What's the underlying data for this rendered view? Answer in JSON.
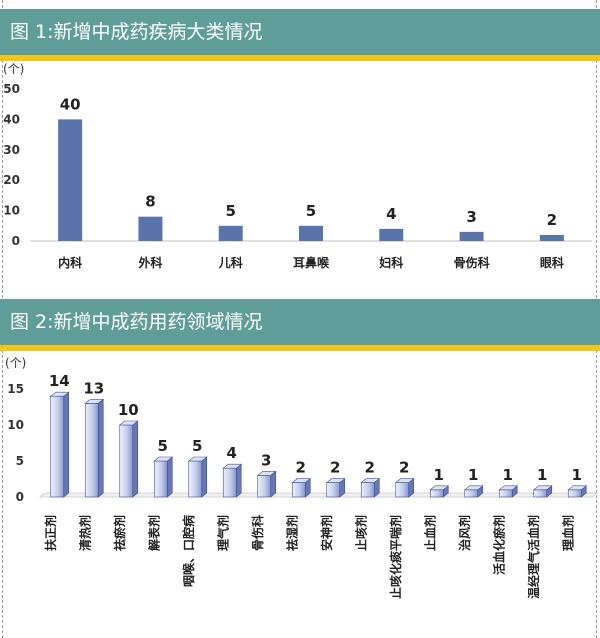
{
  "chart_data": [
    {
      "type": "bar",
      "title": "图 1:新增中成药疾病大类情况",
      "unit": "(个)",
      "categories": [
        "内科",
        "外科",
        "儿科",
        "耳鼻喉",
        "妇科",
        "骨伤科",
        "眼科"
      ],
      "values": [
        40,
        8,
        5,
        5,
        4,
        3,
        2
      ],
      "ylim": [
        0,
        50
      ],
      "yticks": [
        0,
        10,
        20,
        30,
        40,
        50
      ],
      "ytick_labels": [
        "0",
        "10",
        "20",
        "30",
        "40",
        "50"
      ],
      "color": "#5874ab"
    },
    {
      "type": "bar",
      "title": "图 2:新增中成药用药领域情况",
      "unit": "(个)",
      "categories": [
        "扶正剂",
        "清热剂",
        "祛瘀剂",
        "解表剂",
        "咽喉、口腔病",
        "理气剂",
        "骨伤科",
        "祛湿剂",
        "安神剂",
        "止咳剂",
        "止咳化痰平喘剂",
        "止血剂",
        "治风剂",
        "活血化瘀剂",
        "温经理气活血剂",
        "理血剂"
      ],
      "values": [
        14,
        13,
        10,
        5,
        5,
        4,
        3,
        2,
        2,
        2,
        2,
        1,
        1,
        1,
        1,
        1
      ],
      "ylim": [
        0,
        15
      ],
      "yticks": [
        0,
        5,
        10,
        15
      ],
      "ytick_labels": [
        "0",
        "5",
        "10",
        "15"
      ],
      "color": "#9fb0dc"
    }
  ]
}
